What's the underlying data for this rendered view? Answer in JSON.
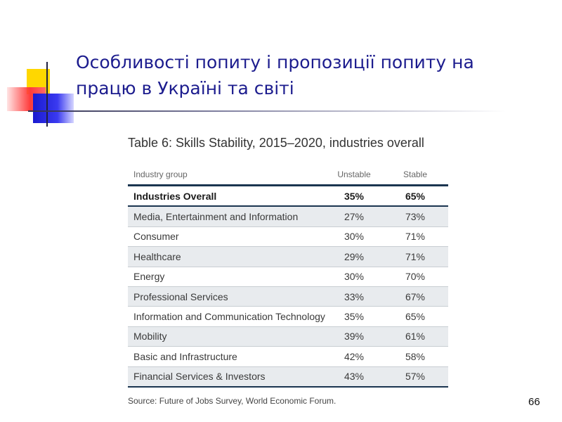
{
  "slide": {
    "title": "Особливості попиту і пропозиції попиту на працю в Україні та світі",
    "page_number": "66"
  },
  "table": {
    "caption": "Table 6: Skills Stability, 2015–2020, industries overall",
    "headers": [
      "Industry group",
      "Unstable",
      "Stable"
    ],
    "rows": [
      [
        "Industries Overall",
        "35%",
        "65%"
      ],
      [
        "Media, Entertainment and Information",
        "27%",
        "73%"
      ],
      [
        "Consumer",
        "30%",
        "71%"
      ],
      [
        "Healthcare",
        "29%",
        "71%"
      ],
      [
        "Energy",
        "30%",
        "70%"
      ],
      [
        "Professional Services",
        "33%",
        "67%"
      ],
      [
        "Information and Communication Technology",
        "35%",
        "65%"
      ],
      [
        "Mobility",
        "39%",
        "61%"
      ],
      [
        "Basic and Infrastructure",
        "42%",
        "58%"
      ],
      [
        "Financial Services & Investors",
        "43%",
        "57%"
      ]
    ],
    "source": "Source: Future of Jobs Survey, World Economic Forum."
  },
  "colors": {
    "title": "#1c1c8e",
    "table_rule": "#1b3550",
    "row_alt": "#e8ebee"
  }
}
